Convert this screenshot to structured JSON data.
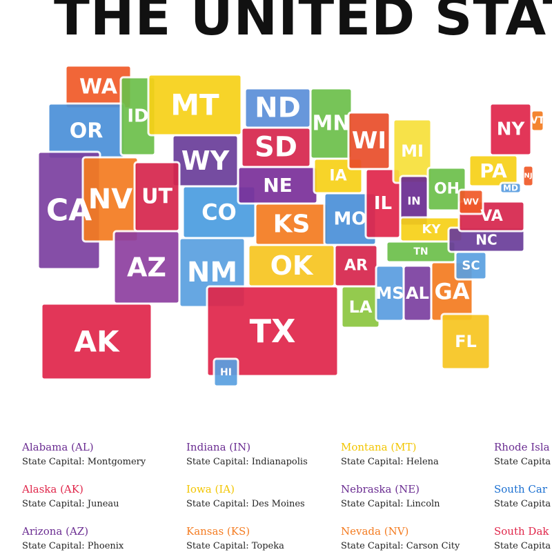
{
  "title": "THE UNITED STATES",
  "states": [
    {
      "abbr": "WA",
      "color": "#f05a28"
    },
    {
      "abbr": "OR",
      "color": "#4a90d9"
    },
    {
      "abbr": "CA",
      "color": "#7b3fa0"
    },
    {
      "abbr": "ID",
      "color": "#6cc04a"
    },
    {
      "abbr": "NV",
      "color": "#f47b20"
    },
    {
      "abbr": "MT",
      "color": "#f7d117"
    },
    {
      "abbr": "WY",
      "color": "#6a3d9a"
    },
    {
      "abbr": "UT",
      "color": "#d6254d"
    },
    {
      "abbr": "AZ",
      "color": "#8e3fa0"
    },
    {
      "abbr": "CO",
      "color": "#4a9de0"
    },
    {
      "abbr": "NM",
      "color": "#5aa0e0"
    },
    {
      "abbr": "ND",
      "color": "#5b8fd9"
    },
    {
      "abbr": "SD",
      "color": "#d6254d"
    },
    {
      "abbr": "NE",
      "color": "#7a2f9a"
    },
    {
      "abbr": "KS",
      "color": "#f47b20"
    },
    {
      "abbr": "TX",
      "color": "#e0264a"
    },
    {
      "abbr": "OK",
      "color": "#f7c520"
    },
    {
      "abbr": "MN",
      "color": "#6cc04a"
    },
    {
      "abbr": "IA",
      "color": "#f7d117"
    },
    {
      "abbr": "MO",
      "color": "#4a90d9"
    },
    {
      "abbr": "AR",
      "color": "#d6254d"
    },
    {
      "abbr": "LA",
      "color": "#8cc63f"
    },
    {
      "abbr": "WI",
      "color": "#e94e2a"
    },
    {
      "abbr": "IL",
      "color": "#e0264a"
    },
    {
      "abbr": "MI",
      "color": "#f7e03a"
    },
    {
      "abbr": "IN",
      "color": "#6a2c91"
    },
    {
      "abbr": "OH",
      "color": "#6cc04a"
    },
    {
      "abbr": "KY",
      "color": "#f7d117"
    },
    {
      "abbr": "TN",
      "color": "#6cc04a"
    },
    {
      "abbr": "MS",
      "color": "#5a9de0"
    },
    {
      "abbr": "AL",
      "color": "#7b3fa0"
    },
    {
      "abbr": "GA",
      "color": "#f47b20"
    },
    {
      "abbr": "FL",
      "color": "#f7c520"
    },
    {
      "abbr": "NC",
      "color": "#6a3d9a"
    },
    {
      "abbr": "SC",
      "color": "#5aa0e0"
    },
    {
      "abbr": "VA",
      "color": "#d6254d"
    },
    {
      "abbr": "WV",
      "color": "#f05a28"
    },
    {
      "abbr": "PA",
      "color": "#f7d117"
    },
    {
      "abbr": "NY",
      "color": "#e0264a"
    },
    {
      "abbr": "VT",
      "color": "#f47b20"
    },
    {
      "abbr": "MD",
      "color": "#5a9de0"
    },
    {
      "abbr": "NJ",
      "color": "#f05a28"
    },
    {
      "abbr": "AK",
      "color": "#e0264a"
    },
    {
      "abbr": "HI",
      "color": "#5aa0e0"
    }
  ],
  "legend": [
    {
      "name": "Alabama (AL)",
      "capital": "State Capital: Montgomery",
      "color": "#6a2c91"
    },
    {
      "name": "Alaska (AK)",
      "capital": "State Capital: Juneau",
      "color": "#e0264a"
    },
    {
      "name": "Arizona (AZ)",
      "capital": "State Capital: Phoenix",
      "color": "#6a2c91"
    },
    {
      "name": "Indiana (IN)",
      "capital": "State Capital: Indianapolis",
      "color": "#6a2c91"
    },
    {
      "name": "Iowa (IA)",
      "capital": "State Capital: Des Moines",
      "color": "#f2c500"
    },
    {
      "name": "Kansas (KS)",
      "capital": "State Capital: Topeka",
      "color": "#f47b20"
    },
    {
      "name": "Montana (MT)",
      "capital": "State Capital: Helena",
      "color": "#f2c500"
    },
    {
      "name": "Nebraska (NE)",
      "capital": "State Capital: Lincoln",
      "color": "#6a2c91"
    },
    {
      "name": "Nevada (NV)",
      "capital": "State Capital: Carson City",
      "color": "#f47b20"
    },
    {
      "name": "Rhode Isla",
      "capital": "State Capita",
      "color": "#6a2c91"
    },
    {
      "name": "South Car",
      "capital": "State Capita",
      "color": "#1a6fd1"
    },
    {
      "name": "South Dak",
      "capital": "State Capita",
      "color": "#e0264a"
    }
  ]
}
